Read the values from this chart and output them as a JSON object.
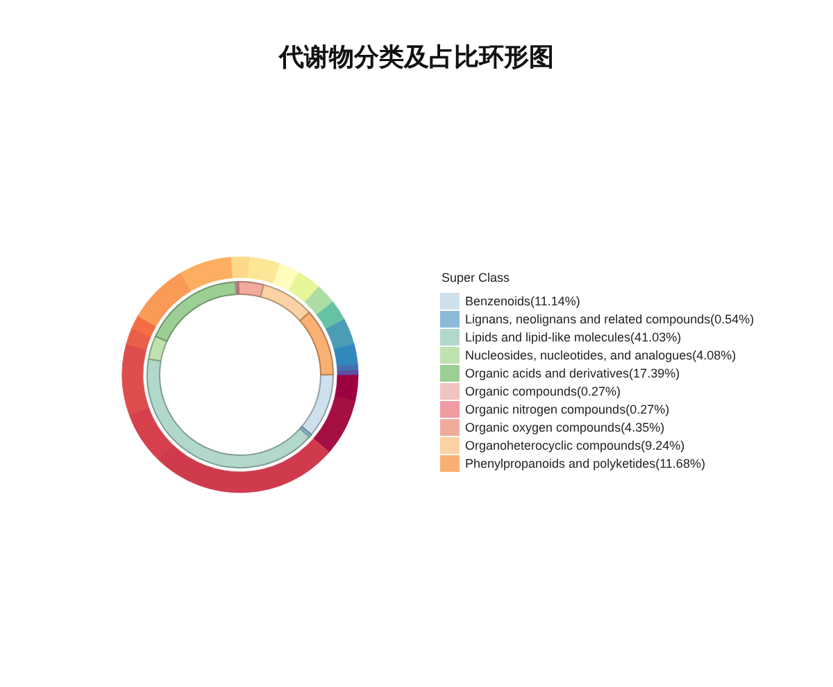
{
  "chart_data": [
    {
      "type": "donut",
      "title": "代谢物分类及占比环形图",
      "legend_title": "Super Class",
      "legend": "right",
      "categories": [
        "Benzenoids(11.14%)",
        "Lignans, neolignans and related compounds(0.54%)",
        "Lipids and lipid-like molecules(41.03%)",
        "Nucleosides, nucleotides, and analogues(4.08%)",
        "Organic acids and derivatives(17.39%)",
        "Organic compounds(0.27%)",
        "Organic nitrogen compounds(0.27%)",
        "Organic oxygen compounds(4.35%)",
        "Organoheterocyclic compounds(9.24%)",
        "Phenylpropanoids and polyketides(11.68%)"
      ],
      "values": [
        11.14,
        0.54,
        41.03,
        4.08,
        17.39,
        0.27,
        0.27,
        4.35,
        9.24,
        11.68
      ],
      "colors": [
        "#cde0ec",
        "#8bbad8",
        "#b2d8cc",
        "#bfe2b0",
        "#9bcf93",
        "#f0c4c0",
        "#ef9ba1",
        "#f2aa9c",
        "#fbd2a4",
        "#fab072"
      ]
    },
    {
      "type": "donut",
      "categories": [
        null,
        null,
        null,
        null,
        null,
        null,
        null,
        null,
        null,
        null,
        null,
        null,
        null,
        null,
        null,
        null,
        null,
        null,
        null
      ],
      "values": [
        3.6,
        7.8,
        25.9,
        7.2,
        9.7,
        2.2,
        1.9,
        8.3,
        7.2,
        2.5,
        4.2,
        2.8,
        3.3,
        2.8,
        2.8,
        3.6,
        2.8,
        0.8,
        0.6
      ],
      "colors": [
        "#9e0142",
        "#a50f44",
        "#d03a4d",
        "#d6404c",
        "#de4c4b",
        "#ea5f47",
        "#f46d43",
        "#f99a57",
        "#fdae61",
        "#fed98a",
        "#fee697",
        "#fffcbc",
        "#e6f598",
        "#abdda4",
        "#66c2a5",
        "#4a9db5",
        "#3288bd",
        "#4470b0",
        "#5e4fa2"
      ]
    }
  ]
}
